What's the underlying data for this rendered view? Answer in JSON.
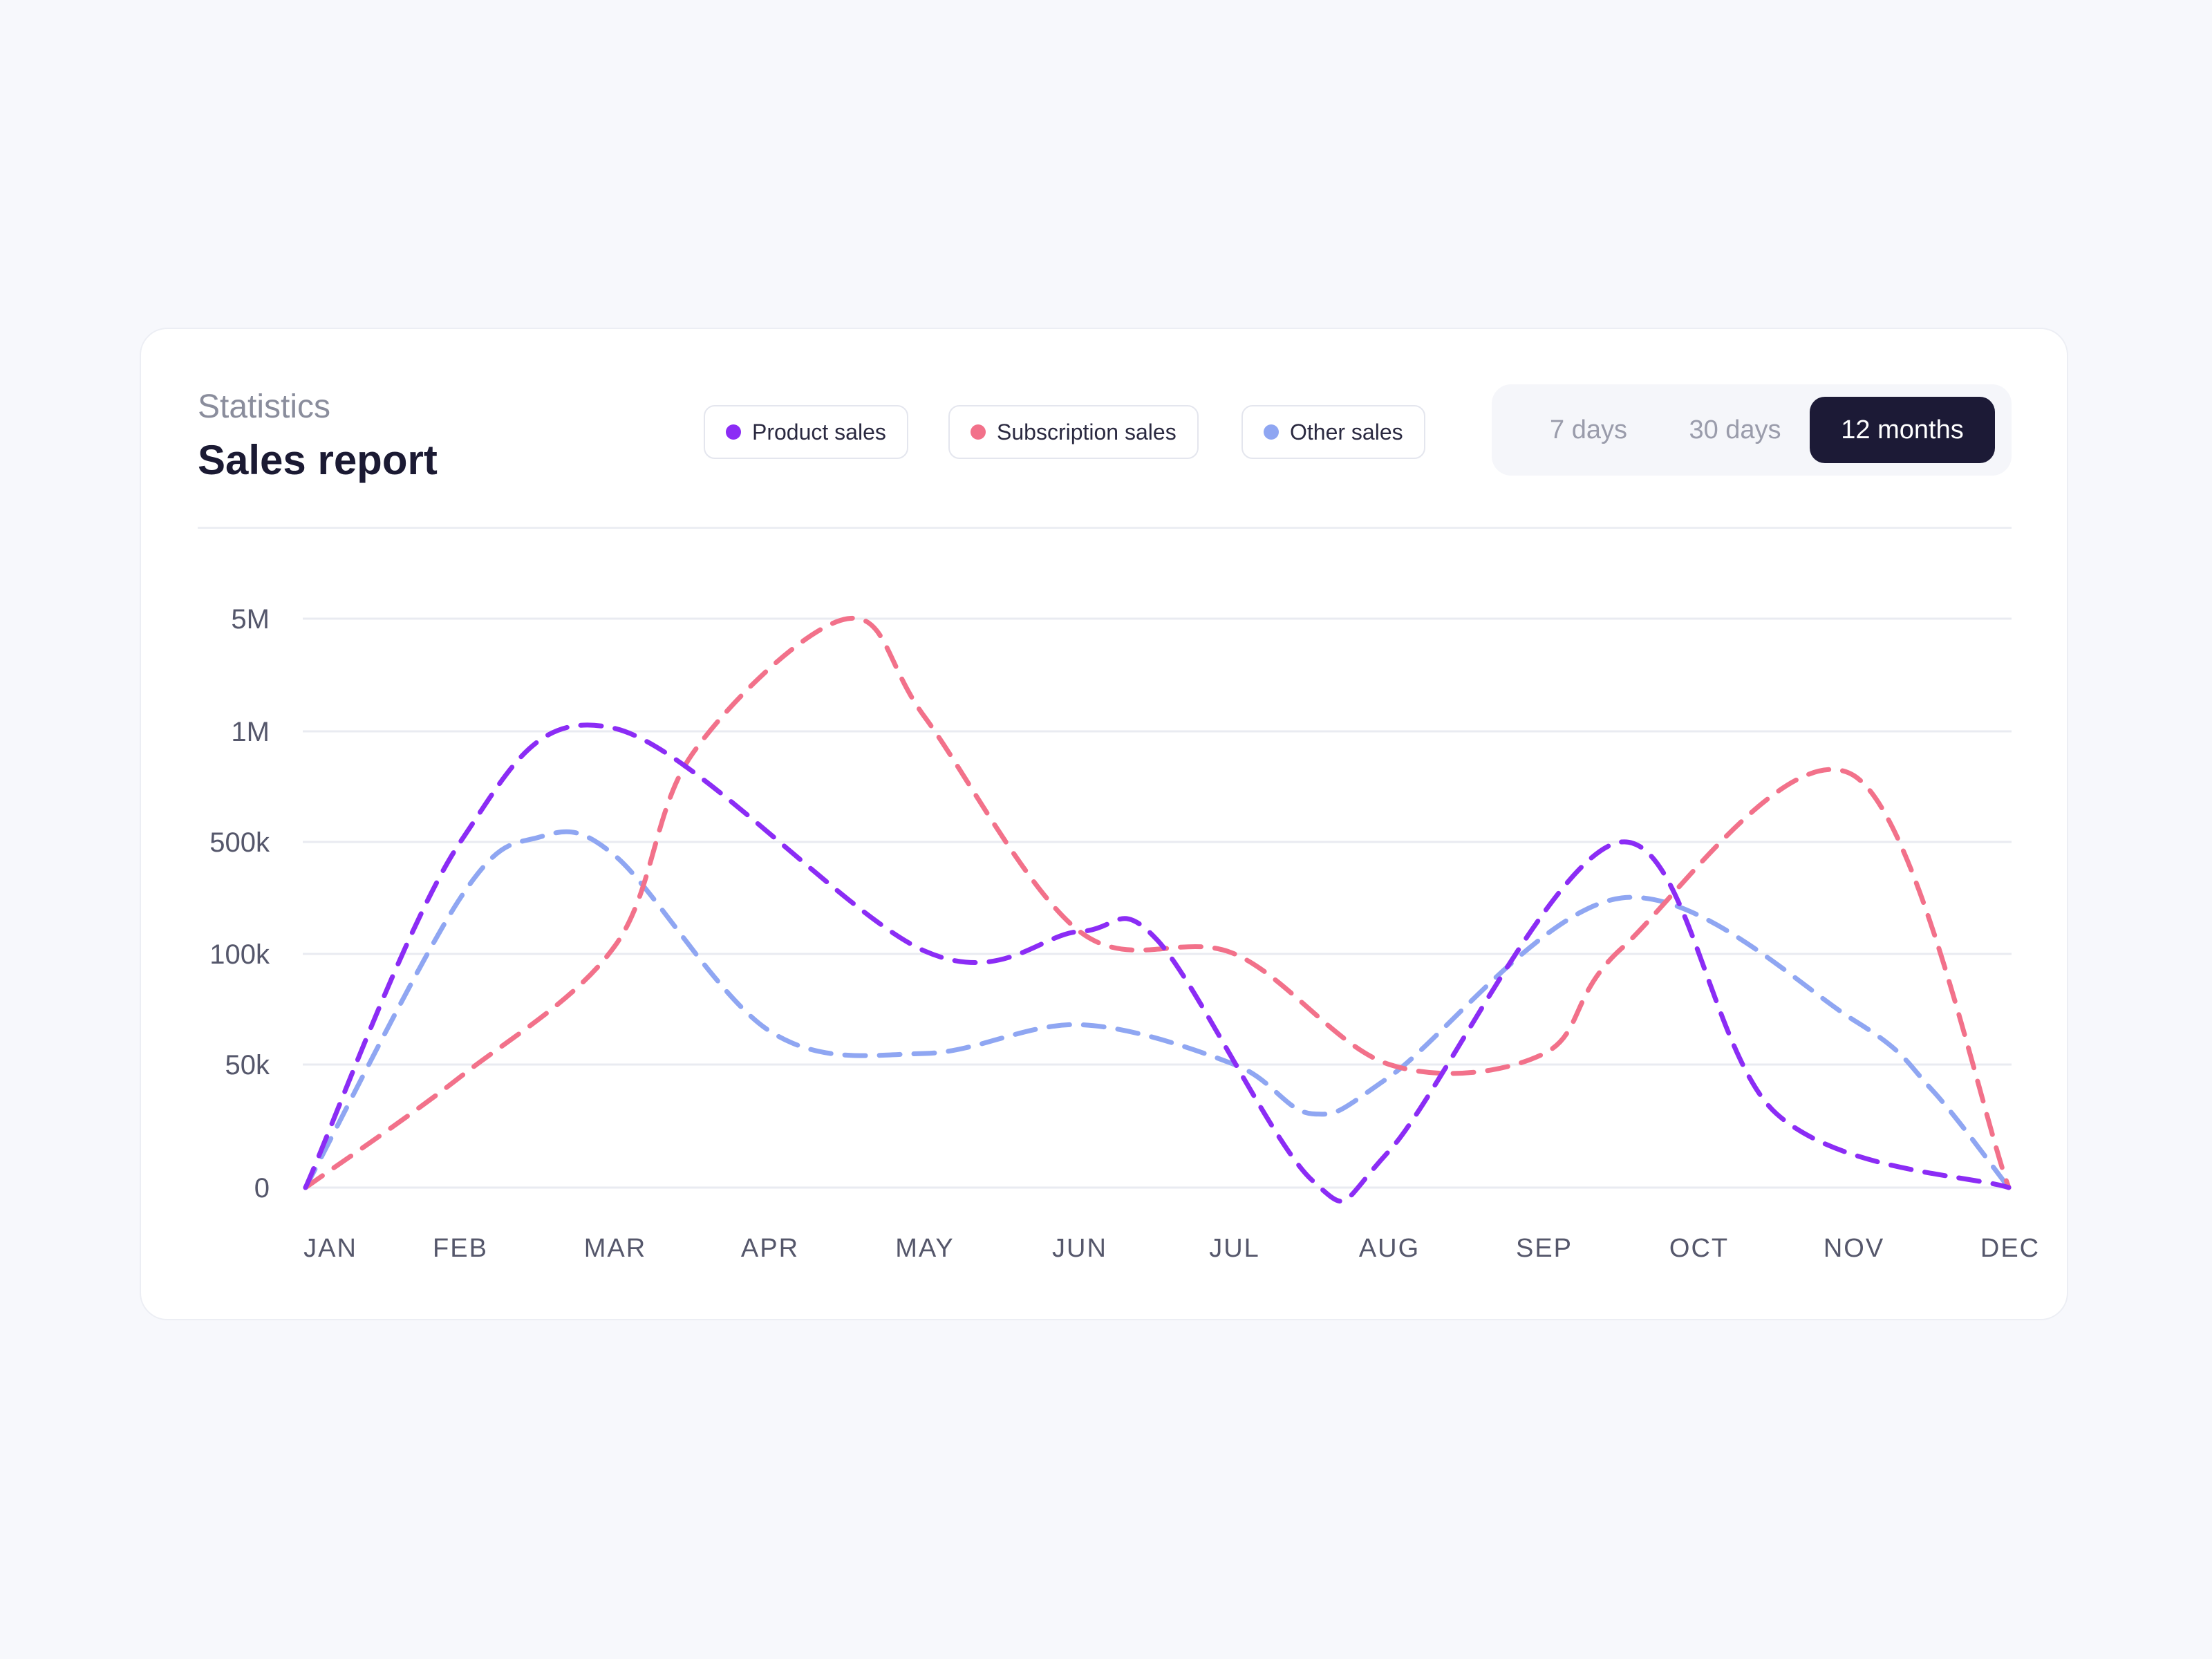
{
  "header": {
    "subtitle": "Statistics",
    "title": "Sales report"
  },
  "legend": [
    {
      "label": "Product sales",
      "color": "#8b2cf5"
    },
    {
      "label": "Subscription sales",
      "color": "#f2718a"
    },
    {
      "label": "Other sales",
      "color": "#8fa6f2"
    }
  ],
  "range_selector": {
    "options": [
      "7 days",
      "30 days",
      "12 months"
    ],
    "active": "12 months"
  },
  "chart_data": {
    "type": "line",
    "title": "Sales report",
    "line_style": "dashed, smoothed",
    "grid": "horizontal",
    "y_scale": "categorical ticks",
    "y_ticks": [
      "0",
      "50k",
      "100k",
      "500k",
      "1M",
      "5M"
    ],
    "categories": [
      "JAN",
      "FEB",
      "MAR",
      "APR",
      "MAY",
      "JUN",
      "JUL",
      "AUG",
      "SEP",
      "OCT",
      "NOV",
      "DEC"
    ],
    "series": [
      {
        "name": "Product sales",
        "color": "#8b2cf5",
        "x": [
          "JAN",
          "FEB",
          "MAR",
          "MAY",
          "JUN",
          "mid-JUN/JUL",
          "mid-JUL/AUG",
          "AUG",
          "mid-SEP/OCT",
          "mid-OCT/NOV",
          "DEC"
        ],
        "values": [
          0,
          500000,
          1100000,
          110000,
          180000,
          150000,
          3000,
          15000,
          500000,
          30000,
          0
        ]
      },
      {
        "name": "Subscription sales",
        "color": "#f2718a",
        "x": [
          "JAN",
          "FEB",
          "MAR",
          "mid-MAR/APR",
          "mid-APR/MAY",
          "MAY",
          "JUN",
          "JUL",
          "AUG",
          "SEP",
          "mid-SEP/OCT",
          "NOV",
          "DEC"
        ],
        "values": [
          0,
          45000,
          130000,
          900000,
          5000000,
          1500000,
          180000,
          100000,
          50000,
          55000,
          120000,
          800000,
          0
        ]
      },
      {
        "name": "Other sales",
        "color": "#8fa6f2",
        "x": [
          "JAN",
          "FEB",
          "mid-FEB/MAR",
          "MAR",
          "APR",
          "MAY",
          "JUN",
          "JUL",
          "mid-JUL/AUG",
          "AUG",
          "mid-SEP/OCT",
          "NOV",
          "mid-NOV/DEC",
          "DEC"
        ],
        "values": [
          0,
          300000,
          520000,
          450000,
          65000,
          55000,
          68000,
          50000,
          30000,
          45000,
          300000,
          70000,
          40000,
          0
        ]
      }
    ]
  }
}
